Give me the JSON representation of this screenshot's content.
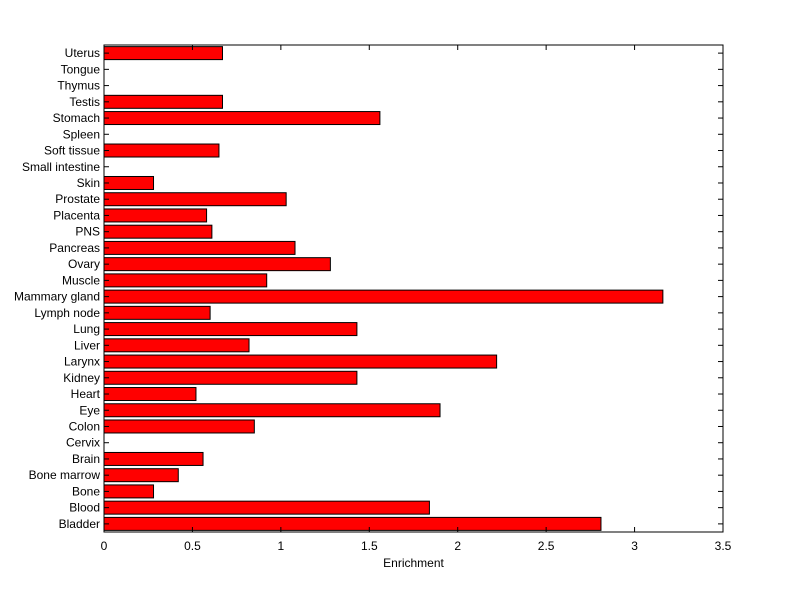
{
  "chart_data": {
    "type": "bar",
    "orientation": "horizontal",
    "title": "",
    "xlabel": "Enrichment",
    "ylabel": "",
    "xlim": [
      0,
      3.5
    ],
    "xticks": [
      0,
      0.5,
      1,
      1.5,
      2,
      2.5,
      3,
      3.5
    ],
    "xtick_labels": [
      "0",
      "0.5",
      "1",
      "1.5",
      "2",
      "2.5",
      "3",
      "3.5"
    ],
    "grid": false,
    "legend": "none",
    "bar_color": "#ff0000",
    "categories": [
      "Bladder",
      "Blood",
      "Bone",
      "Bone marrow",
      "Brain",
      "Cervix",
      "Colon",
      "Eye",
      "Heart",
      "Kidney",
      "Larynx",
      "Liver",
      "Lung",
      "Lymph node",
      "Mammary gland",
      "Muscle",
      "Ovary",
      "Pancreas",
      "PNS",
      "Placenta",
      "Prostate",
      "Skin",
      "Small intestine",
      "Soft tissue",
      "Spleen",
      "Stomach",
      "Testis",
      "Thymus",
      "Tongue",
      "Uterus"
    ],
    "values": [
      2.81,
      1.84,
      0.28,
      0.42,
      0.56,
      0,
      0.85,
      1.9,
      0.52,
      1.43,
      2.22,
      0.82,
      1.43,
      0.6,
      3.16,
      0.92,
      1.28,
      1.08,
      0.61,
      0.58,
      1.03,
      0.28,
      0,
      0.65,
      0,
      1.56,
      0.67,
      0,
      0,
      0.67
    ]
  }
}
